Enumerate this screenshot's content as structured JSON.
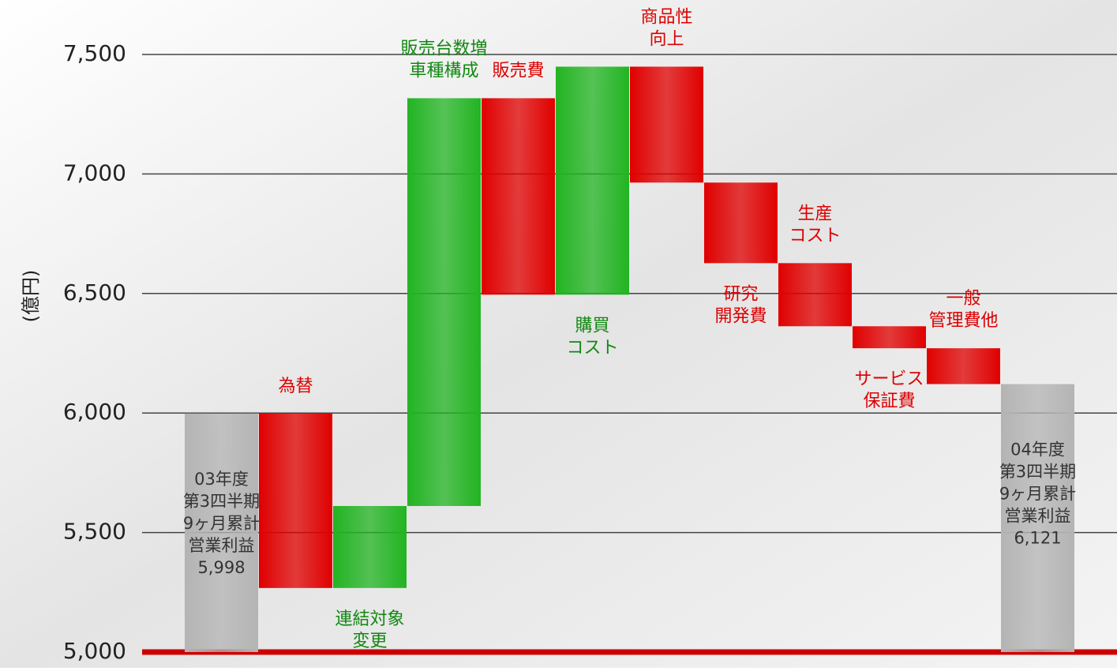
{
  "chart_data": {
    "type": "waterfall",
    "y_label": "(億円)",
    "categories": [
      [
        "03年度",
        "第3四半期",
        "9ヶ月累計",
        "営業利益"
      ],
      [
        "為替"
      ],
      [
        "連結対象",
        "変更"
      ],
      [
        "販売台数増",
        "車種構成"
      ],
      [
        "販売費"
      ],
      [
        "購買",
        "コスト"
      ],
      [
        "商品性",
        "向上"
      ],
      [
        "研究",
        "開発費"
      ],
      [
        "生産",
        "コスト"
      ],
      [
        "サービス",
        "保証費"
      ],
      [
        "一般",
        "管理費他"
      ],
      [
        "04年度",
        "第3四半期",
        "9ヶ月累計",
        "営業利益"
      ]
    ],
    "measure": [
      "absolute",
      "relative",
      "relative",
      "relative",
      "relative",
      "relative",
      "relative",
      "relative",
      "relative",
      "relative",
      "relative",
      "absolute"
    ],
    "values": [
      5998,
      -730,
      343,
      1706,
      -822,
      954,
      -485,
      -337,
      -264,
      -92,
      -150,
      6121
    ],
    "value_labels": [
      "5,998",
      null,
      null,
      null,
      null,
      null,
      null,
      null,
      null,
      null,
      null,
      "6,121"
    ],
    "label_position": [
      "inside",
      "above",
      "below",
      "above",
      "above",
      "below",
      "above",
      "below",
      "above",
      "below",
      "above",
      "inside"
    ],
    "colors": {
      "absolute": "#b4b4b4",
      "increase": "#22b422",
      "decrease": "#e00000"
    },
    "label_colors": {
      "absolute": "#333333",
      "increase": "#118811",
      "decrease": "#dd0000"
    },
    "baseline_color": "#cc0000",
    "ylim": [
      5000,
      7500
    ],
    "yticks": [
      {
        "value": 5000,
        "label": "5,000"
      },
      {
        "value": 5500,
        "label": "5,500"
      },
      {
        "value": 6000,
        "label": "6,000"
      },
      {
        "value": 6500,
        "label": "6,500"
      },
      {
        "value": 7000,
        "label": "7,000"
      },
      {
        "value": 7500,
        "label": "7,500"
      }
    ],
    "grid": true
  }
}
